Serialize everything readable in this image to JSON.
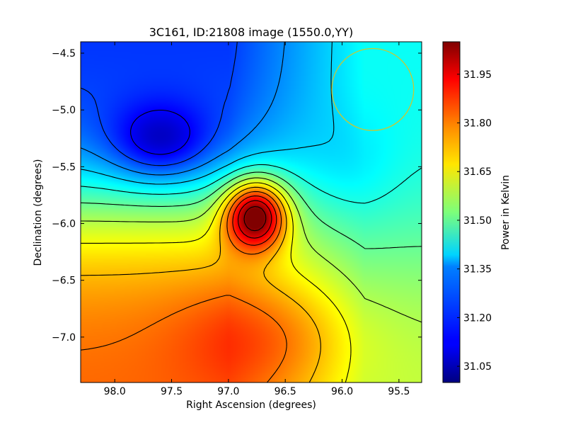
{
  "chart_data": {
    "type": "heatmap",
    "title": "3C161, ID:21808 image (1550.0,YY)",
    "xlabel": "Right Ascension (degrees)",
    "ylabel": "Declination (degrees)",
    "xlim": [
      98.3,
      95.3
    ],
    "ylim": [
      -7.4,
      -4.4
    ],
    "x_ticks": [
      98.0,
      97.5,
      97.0,
      96.5,
      96.0,
      95.5
    ],
    "x_tick_labels": [
      "98.0",
      "97.5",
      "97.0",
      "96.5",
      "96.0",
      "95.5"
    ],
    "y_ticks": [
      -4.5,
      -5.0,
      -5.5,
      -6.0,
      -6.5,
      -7.0
    ],
    "y_tick_labels": [
      "−4.5",
      "−5.0",
      "−5.5",
      "−6.0",
      "−6.5",
      "−7.0"
    ],
    "colorbar": {
      "label": "Power in Kelvin",
      "range": [
        31.0,
        32.05
      ],
      "ticks": [
        31.05,
        31.2,
        31.35,
        31.5,
        31.65,
        31.8,
        31.95
      ],
      "tick_labels": [
        "31.05",
        "31.20",
        "31.35",
        "31.50",
        "31.65",
        "31.80",
        "31.95"
      ],
      "colormap": "jet"
    },
    "features": {
      "peak": {
        "ra": 96.76,
        "dec": -5.92,
        "value": 32.05
      },
      "minimum": {
        "ra": 97.6,
        "dec": -5.3,
        "value": 31.0
      },
      "beam_circle": {
        "ra": 95.73,
        "dec": -4.82,
        "radius_deg": 0.36,
        "color": "#c8c832"
      }
    }
  }
}
